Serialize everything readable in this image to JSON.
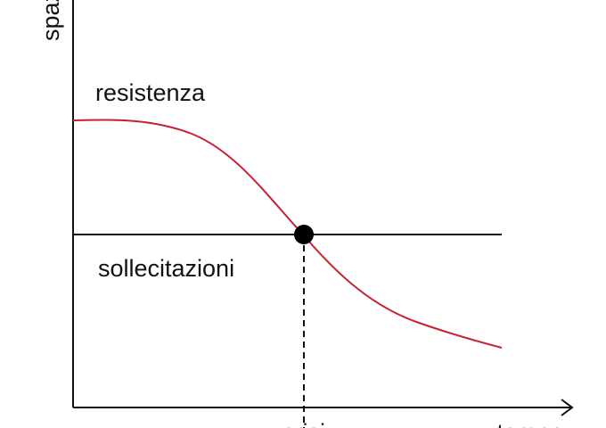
{
  "axes": {
    "y_label": "spazio",
    "x_label": "tempo"
  },
  "labels": {
    "upper": "resistenza",
    "lower": "sollecitazioni",
    "point": "crisi"
  }
}
